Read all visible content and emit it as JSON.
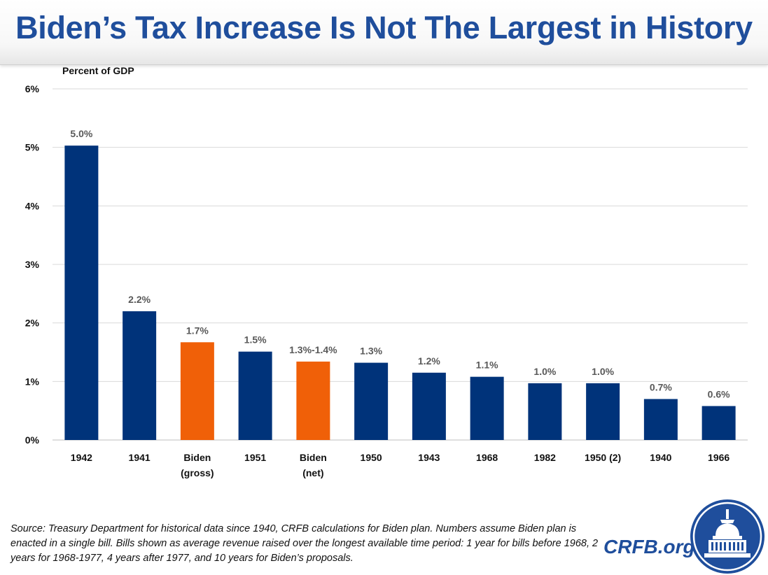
{
  "title": "Biden’s Tax Increase Is Not The Largest in History",
  "source_note": "Source: Treasury Department for historical data since 1940, CRFB calculations for Biden plan. Numbers assume Biden plan is enacted in a single bill. Bills shown as average revenue raised over the longest available time period: 1 year for bills before 1968, 2 years for 1968-1977, 4 years after 1977, and 10 years for Biden’s proposals.",
  "brand": "CRFB.org",
  "colors": {
    "title": "#1f4e9c",
    "historical": "#00337a",
    "biden": "#f06008",
    "data_label": "#595959",
    "grid": "#d9d9d9"
  },
  "chart_data": {
    "type": "bar",
    "ylabel": "Percent of GDP",
    "ylim": [
      0,
      6
    ],
    "yticks": [
      "0%",
      "1%",
      "2%",
      "3%",
      "4%",
      "5%",
      "6%"
    ],
    "grid": true,
    "categories": [
      [
        "1942"
      ],
      [
        "1941"
      ],
      [
        "Biden",
        "(gross)"
      ],
      [
        "1951"
      ],
      [
        "Biden",
        "(net)"
      ],
      [
        "1950"
      ],
      [
        "1943"
      ],
      [
        "1968"
      ],
      [
        "1982"
      ],
      [
        "1950 (2)"
      ],
      [
        "1940"
      ],
      [
        "1966"
      ]
    ],
    "values": [
      5.03,
      2.2,
      1.67,
      1.51,
      1.34,
      1.32,
      1.15,
      1.08,
      0.97,
      0.97,
      0.7,
      0.58
    ],
    "data_labels": [
      "5.0%",
      "2.2%",
      "1.7%",
      "1.5%",
      "1.3%-1.4%",
      "1.3%",
      "1.2%",
      "1.1%",
      "1.0%",
      "1.0%",
      "0.7%",
      "0.6%"
    ],
    "highlight": [
      false,
      false,
      true,
      false,
      true,
      false,
      false,
      false,
      false,
      false,
      false,
      false
    ]
  }
}
